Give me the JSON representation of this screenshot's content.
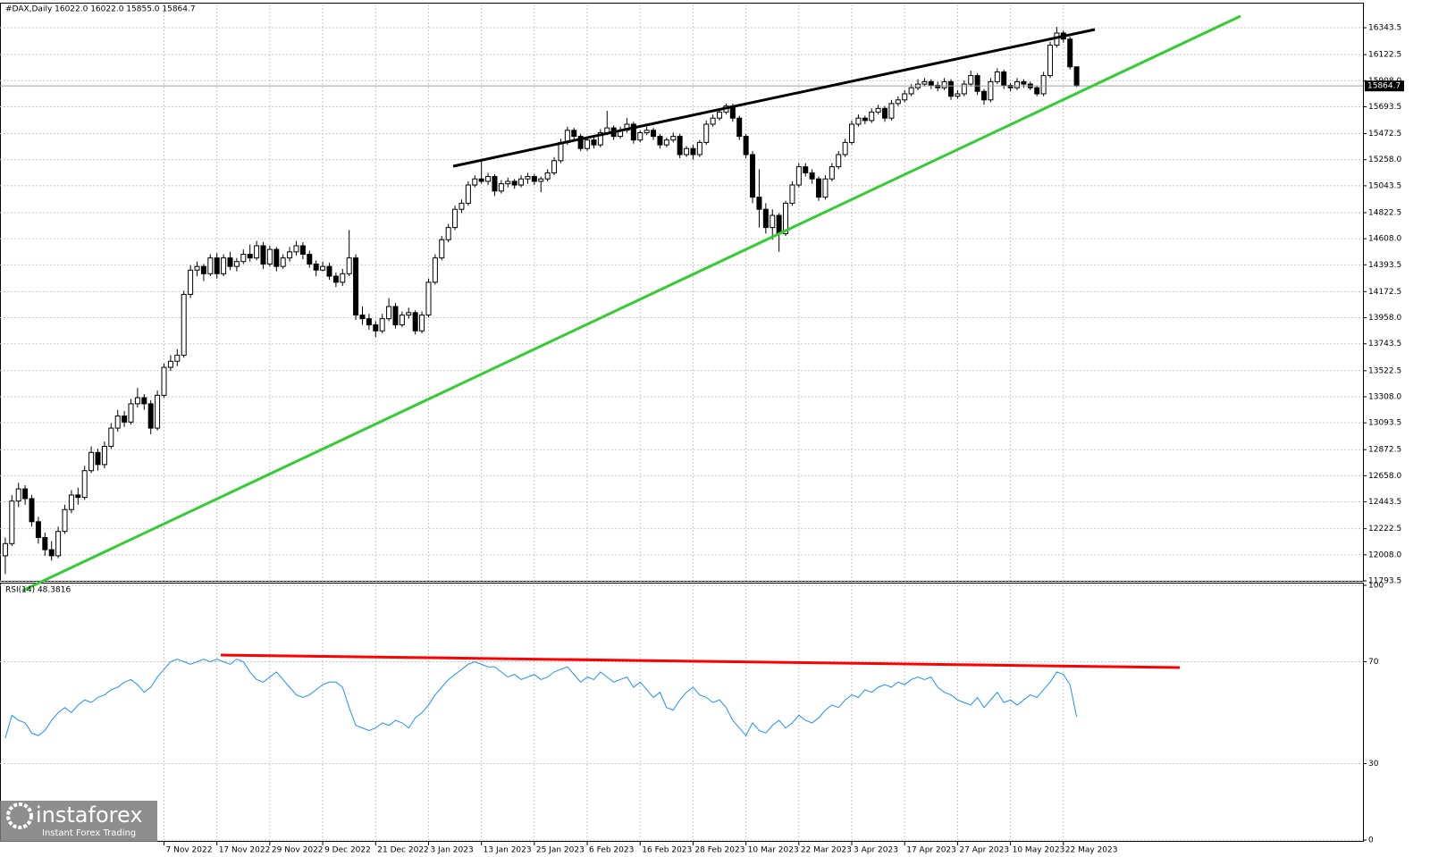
{
  "chart_data": [
    {
      "type": "candlestick",
      "title": "#DAX,Daily  16022.0 16022.0 15855.0 15864.7",
      "xlim": [
        -0.8,
        205.3
      ],
      "ylim": [
        11793.5,
        16535
      ],
      "grid": true,
      "up_color": "#ffffff",
      "down_color": "#000000",
      "yticks": [
        16343.5,
        16122.5,
        {
          "value": 15908,
          "label": "15908.0"
        },
        15693.5,
        15472.5,
        {
          "value": 15258,
          "label": "15258.0"
        },
        15043.5,
        14822.5,
        {
          "value": 14608,
          "label": "14608.0"
        },
        14393.5,
        14172.5,
        {
          "value": 13958,
          "label": "13958.0"
        },
        13743.5,
        13522.5,
        {
          "value": 13308,
          "label": "13308.0"
        },
        13093.5,
        12872.5,
        {
          "value": 12658,
          "label": "12658.0"
        },
        12443.5,
        12222.5,
        {
          "value": 12008,
          "label": "12008.0"
        },
        11793.5
      ],
      "xticks": [
        {
          "value": 24,
          "label": "7 Nov 2022"
        },
        {
          "value": 32,
          "label": "17 Nov 2022"
        },
        {
          "value": 40,
          "label": "29 Nov 2022"
        },
        {
          "value": 48,
          "label": "9 Dec 2022"
        },
        {
          "value": 56,
          "label": "21 Dec 2022"
        },
        {
          "value": 64,
          "label": "3 Jan 2023"
        },
        {
          "value": 72,
          "label": "13 Jan 2023"
        },
        {
          "value": 80,
          "label": "25 Jan 2023"
        },
        {
          "value": 88,
          "label": "6 Feb 2023"
        },
        {
          "value": 96,
          "label": "16 Feb 2023"
        },
        {
          "value": 104,
          "label": "28 Feb 2023"
        },
        {
          "value": 112,
          "label": "10 Mar 2023"
        },
        {
          "value": 120,
          "label": "22 Mar 2023"
        },
        {
          "value": 128,
          "label": "3 Apr 2023"
        },
        {
          "value": 136,
          "label": "17 Apr 2023"
        },
        {
          "value": 144,
          "label": "27 Apr 2023"
        },
        {
          "value": 152,
          "label": "10 May 2023"
        },
        {
          "value": 160,
          "label": "22 May 2023"
        }
      ],
      "candles": [
        [
          12000,
          12150,
          11850,
          12100
        ],
        [
          12100,
          12500,
          12080,
          12450
        ],
        [
          12450,
          12600,
          12400,
          12550
        ],
        [
          12550,
          12580,
          12420,
          12470
        ],
        [
          12470,
          12500,
          12240,
          12280
        ],
        [
          12280,
          12320,
          12100,
          12150
        ],
        [
          12150,
          12190,
          12000,
          12050
        ],
        [
          12050,
          12120,
          11960,
          12000
        ],
        [
          12000,
          12240,
          11980,
          12200
        ],
        [
          12200,
          12420,
          12180,
          12380
        ],
        [
          12380,
          12540,
          12350,
          12500
        ],
        [
          12500,
          12560,
          12420,
          12480
        ],
        [
          12480,
          12740,
          12460,
          12700
        ],
        [
          12700,
          12900,
          12680,
          12850
        ],
        [
          12850,
          12880,
          12700,
          12750
        ],
        [
          12750,
          12940,
          12720,
          12900
        ],
        [
          12900,
          13090,
          12880,
          13050
        ],
        [
          13050,
          13200,
          13020,
          13150
        ],
        [
          13150,
          13190,
          13060,
          13100
        ],
        [
          13100,
          13290,
          13080,
          13250
        ],
        [
          13250,
          13380,
          13220,
          13300
        ],
        [
          13300,
          13330,
          13200,
          13250
        ],
        [
          13250,
          13280,
          13000,
          13050
        ],
        [
          13050,
          13360,
          13030,
          13320
        ],
        [
          13320,
          13580,
          13300,
          13550
        ],
        [
          13550,
          13650,
          13520,
          13600
        ],
        [
          13600,
          13700,
          13560,
          13650
        ],
        [
          13650,
          14180,
          13630,
          14150
        ],
        [
          14150,
          14390,
          14120,
          14350
        ],
        [
          14350,
          14420,
          14300,
          14380
        ],
        [
          14380,
          14400,
          14260,
          14320
        ],
        [
          14320,
          14480,
          14300,
          14450
        ],
        [
          14450,
          14490,
          14280,
          14320
        ],
        [
          14320,
          14480,
          14300,
          14450
        ],
        [
          14450,
          14500,
          14350,
          14380
        ],
        [
          14380,
          14450,
          14340,
          14420
        ],
        [
          14420,
          14520,
          14400,
          14480
        ],
        [
          14480,
          14560,
          14420,
          14450
        ],
        [
          14450,
          14590,
          14430,
          14550
        ],
        [
          14550,
          14580,
          14360,
          14400
        ],
        [
          14400,
          14550,
          14380,
          14520
        ],
        [
          14520,
          14540,
          14340,
          14380
        ],
        [
          14380,
          14480,
          14360,
          14450
        ],
        [
          14450,
          14540,
          14420,
          14500
        ],
        [
          14500,
          14590,
          14470,
          14550
        ],
        [
          14550,
          14580,
          14440,
          14480
        ],
        [
          14480,
          14510,
          14370,
          14400
        ],
        [
          14400,
          14430,
          14300,
          14350
        ],
        [
          14350,
          14420,
          14340,
          14380
        ],
        [
          14380,
          14410,
          14270,
          14300
        ],
        [
          14300,
          14330,
          14210,
          14250
        ],
        [
          14250,
          14360,
          14220,
          14320
        ],
        [
          14320,
          14680,
          14300,
          14450
        ],
        [
          14450,
          14480,
          13940,
          13980
        ],
        [
          13980,
          14050,
          13900,
          13950
        ],
        [
          13950,
          13990,
          13860,
          13900
        ],
        [
          13900,
          13930,
          13800,
          13850
        ],
        [
          13850,
          13990,
          13830,
          13950
        ],
        [
          13950,
          14120,
          13930,
          14050
        ],
        [
          14050,
          14080,
          13870,
          13900
        ],
        [
          13900,
          14010,
          13880,
          13980
        ],
        [
          13980,
          14040,
          13950,
          14000
        ],
        [
          14000,
          14020,
          13820,
          13850
        ],
        [
          13850,
          14010,
          13830,
          13980
        ],
        [
          13980,
          14280,
          13960,
          14250
        ],
        [
          14250,
          14480,
          14230,
          14450
        ],
        [
          14450,
          14630,
          14430,
          14600
        ],
        [
          14600,
          14730,
          14580,
          14700
        ],
        [
          14700,
          14880,
          14680,
          14850
        ],
        [
          14850,
          14930,
          14820,
          14900
        ],
        [
          14900,
          15080,
          14880,
          15050
        ],
        [
          15050,
          15130,
          15030,
          15100
        ],
        [
          15100,
          15260,
          15060,
          15080
        ],
        [
          15080,
          15150,
          15050,
          15120
        ],
        [
          15120,
          15140,
          14960,
          15000
        ],
        [
          15000,
          15090,
          14980,
          15060
        ],
        [
          15060,
          15110,
          15030,
          15080
        ],
        [
          15080,
          15100,
          15020,
          15050
        ],
        [
          15050,
          15130,
          15030,
          15100
        ],
        [
          15100,
          15150,
          15060,
          15120
        ],
        [
          15120,
          15140,
          15050,
          15080
        ],
        [
          15080,
          15120,
          14990,
          15100
        ],
        [
          15100,
          15180,
          15080,
          15150
        ],
        [
          15150,
          15280,
          15130,
          15250
        ],
        [
          15250,
          15430,
          15230,
          15400
        ],
        [
          15400,
          15530,
          15380,
          15500
        ],
        [
          15500,
          15520,
          15420,
          15450
        ],
        [
          15450,
          15470,
          15330,
          15350
        ],
        [
          15350,
          15450,
          15330,
          15420
        ],
        [
          15420,
          15440,
          15350,
          15380
        ],
        [
          15380,
          15510,
          15360,
          15480
        ],
        [
          15480,
          15660,
          15460,
          15520
        ],
        [
          15520,
          15540,
          15420,
          15450
        ],
        [
          15450,
          15530,
          15430,
          15500
        ],
        [
          15500,
          15600,
          15480,
          15550
        ],
        [
          15550,
          15570,
          15390,
          15420
        ],
        [
          15420,
          15500,
          15400,
          15480
        ],
        [
          15480,
          15530,
          15460,
          15500
        ],
        [
          15500,
          15520,
          15420,
          15450
        ],
        [
          15450,
          15470,
          15350,
          15380
        ],
        [
          15380,
          15440,
          15360,
          15420
        ],
        [
          15420,
          15480,
          15400,
          15450
        ],
        [
          15450,
          15470,
          15270,
          15300
        ],
        [
          15300,
          15370,
          15280,
          15350
        ],
        [
          15350,
          15380,
          15260,
          15300
        ],
        [
          15300,
          15420,
          15280,
          15400
        ],
        [
          15400,
          15580,
          15380,
          15550
        ],
        [
          15550,
          15630,
          15530,
          15600
        ],
        [
          15600,
          15680,
          15580,
          15650
        ],
        [
          15650,
          15720,
          15630,
          15700
        ],
        [
          15700,
          15720,
          15570,
          15600
        ],
        [
          15600,
          15620,
          15420,
          15450
        ],
        [
          15450,
          15470,
          15270,
          15300
        ],
        [
          15300,
          15330,
          14900,
          14950
        ],
        [
          14950,
          15180,
          14700,
          14850
        ],
        [
          14850,
          14900,
          14650,
          14700
        ],
        [
          14700,
          14850,
          14600,
          14800
        ],
        [
          14800,
          14820,
          14500,
          14650
        ],
        [
          14650,
          14920,
          14630,
          14900
        ],
        [
          14900,
          15080,
          14880,
          15050
        ],
        [
          15050,
          15230,
          15030,
          15200
        ],
        [
          15200,
          15230,
          15120,
          15150
        ],
        [
          15150,
          15180,
          15060,
          15100
        ],
        [
          15100,
          15120,
          14920,
          14950
        ],
        [
          14950,
          15130,
          14930,
          15100
        ],
        [
          15100,
          15230,
          15080,
          15200
        ],
        [
          15200,
          15330,
          15180,
          15300
        ],
        [
          15300,
          15430,
          15280,
          15400
        ],
        [
          15400,
          15580,
          15380,
          15550
        ],
        [
          15550,
          15630,
          15530,
          15600
        ],
        [
          15600,
          15620,
          15550,
          15580
        ],
        [
          15580,
          15680,
          15560,
          15650
        ],
        [
          15650,
          15710,
          15630,
          15680
        ],
        [
          15680,
          15700,
          15570,
          15600
        ],
        [
          15600,
          15750,
          15580,
          15720
        ],
        [
          15720,
          15780,
          15700,
          15750
        ],
        [
          15750,
          15830,
          15730,
          15800
        ],
        [
          15800,
          15880,
          15780,
          15850
        ],
        [
          15850,
          15920,
          15830,
          15880
        ],
        [
          15880,
          15930,
          15860,
          15900
        ],
        [
          15900,
          15920,
          15840,
          15870
        ],
        [
          15870,
          15900,
          15820,
          15850
        ],
        [
          15850,
          15930,
          15830,
          15900
        ],
        [
          15900,
          15920,
          15750,
          15780
        ],
        [
          15780,
          15830,
          15760,
          15800
        ],
        [
          15800,
          15910,
          15780,
          15880
        ],
        [
          15880,
          15990,
          15860,
          15950
        ],
        [
          15950,
          15970,
          15790,
          15820
        ],
        [
          15820,
          15840,
          15710,
          15750
        ],
        [
          15750,
          15930,
          15730,
          15900
        ],
        [
          15900,
          16010,
          15880,
          15980
        ],
        [
          15980,
          16000,
          15840,
          15870
        ],
        [
          15870,
          15890,
          15820,
          15850
        ],
        [
          15850,
          15930,
          15830,
          15900
        ],
        [
          15900,
          15920,
          15850,
          15880
        ],
        [
          15880,
          15900,
          15830,
          15850
        ],
        [
          15850,
          15870,
          15780,
          15800
        ],
        [
          15800,
          15980,
          15780,
          15950
        ],
        [
          15950,
          16230,
          15930,
          16200
        ],
        [
          16200,
          16350,
          16180,
          16300
        ],
        [
          16300,
          16320,
          16220,
          16250
        ],
        [
          16250,
          16270,
          16000,
          16022
        ],
        [
          16022,
          16022,
          15855,
          15864.7
        ]
      ]
    },
    {
      "type": "line",
      "title": "RSI(14) 48.3816",
      "xlim": [
        -0.8,
        205.3
      ],
      "ylim": [
        0,
        100
      ],
      "yticks": [
        100,
        70,
        30,
        0
      ],
      "color": "#1e90ff",
      "values": [
        40,
        49,
        47,
        46,
        42,
        41,
        43,
        47,
        50,
        52,
        50,
        53,
        55,
        54,
        56,
        57,
        59,
        60,
        62,
        63,
        61,
        58,
        60,
        64,
        67,
        70,
        71,
        70,
        69,
        70,
        71,
        70,
        71,
        70,
        69,
        71,
        70,
        66,
        63,
        62,
        64,
        66,
        63,
        60,
        57,
        56,
        57,
        59,
        61,
        62,
        62,
        60,
        52,
        45,
        44,
        43,
        44,
        46,
        45,
        47,
        46,
        44,
        48,
        50,
        53,
        57,
        60,
        63,
        65,
        67,
        69,
        70,
        69,
        68,
        68,
        66,
        64,
        65,
        63,
        64,
        65,
        63,
        64,
        66,
        67,
        68,
        65,
        62,
        64,
        63,
        66,
        64,
        62,
        63,
        64,
        60,
        62,
        59,
        56,
        58,
        52,
        51,
        55,
        58,
        60,
        57,
        56,
        54,
        55,
        52,
        47,
        44,
        41,
        46,
        43,
        42,
        45,
        47,
        44,
        46,
        49,
        47,
        46,
        48,
        51,
        53,
        52,
        55,
        57,
        56,
        59,
        58,
        60,
        61,
        60,
        62,
        61,
        63,
        64,
        63,
        64,
        60,
        58,
        57,
        55,
        54,
        53,
        56,
        52,
        55,
        58,
        54,
        55,
        53,
        55,
        57,
        56,
        59,
        62,
        66,
        65,
        61,
        48.3816
      ]
    }
  ],
  "logo": {
    "name": "instaforex",
    "tagline": "Instant Forex Trading"
  }
}
